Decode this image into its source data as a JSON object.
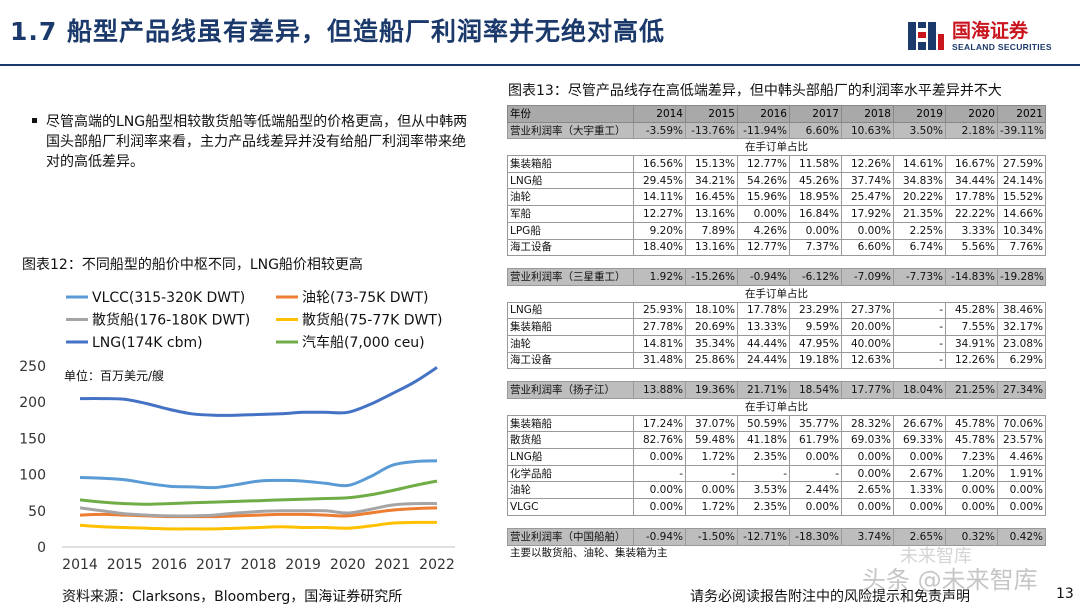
{
  "header": {
    "title": "1.7 船型产品线虽有差异，但造船厂利润率并无绝对高低",
    "logo_cn": "国海证券",
    "logo_en": "SEALAND SECURITIES"
  },
  "bullet_text": "尽管高端的LNG船型相较散货船等低端船型的价格更高，但从中韩两国头部船厂利润率来看，主力产品线差异并没有给船厂利润率带来绝对的高低差异。",
  "chart12_title": "图表12：不同船型的船价中枢不同，LNG船价相较更高",
  "chart_data": [
    {
      "type": "line",
      "title": "图表12：不同船型的船价中枢不同，LNG船价相较更高",
      "unit_label": "单位：百万美元/艘",
      "xlabel": "",
      "ylabel": "",
      "x": [
        2014,
        2015,
        2016,
        2017,
        2018,
        2019,
        2020,
        2021,
        2022
      ],
      "ylim": [
        0,
        250
      ],
      "yticks": [
        0,
        50,
        100,
        150,
        200,
        250
      ],
      "legend_placement": "top",
      "grid": false,
      "series": [
        {
          "name": "VLCC(315-320K DWT)",
          "color": "#5b9bd5",
          "x": [
            2014,
            2014.5,
            2015,
            2015.5,
            2016,
            2016.5,
            2017,
            2017.5,
            2018,
            2018.5,
            2019,
            2019.5,
            2020,
            2020.5,
            2021,
            2021.5,
            2022
          ],
          "values": [
            96,
            95,
            93,
            88,
            84,
            83,
            82,
            86,
            91,
            92,
            91,
            88,
            85,
            97,
            113,
            118,
            119
          ]
        },
        {
          "name": "油轮(73-75K DWT)",
          "color": "#ed7d31",
          "x": [
            2014,
            2014.5,
            2015,
            2015.5,
            2016,
            2016.5,
            2017,
            2017.5,
            2018,
            2018.5,
            2019,
            2019.5,
            2020,
            2020.5,
            2021,
            2021.5,
            2022
          ],
          "values": [
            44,
            45,
            44,
            43,
            42,
            42,
            42,
            43,
            44,
            45,
            45,
            44,
            43,
            47,
            51,
            53,
            54
          ]
        },
        {
          "name": "散货船(176-180K DWT)",
          "color": "#a5a5a5",
          "x": [
            2014,
            2014.5,
            2015,
            2015.5,
            2016,
            2016.5,
            2017,
            2017.5,
            2018,
            2018.5,
            2019,
            2019.5,
            2020,
            2020.5,
            2021,
            2021.5,
            2022
          ],
          "values": [
            54,
            50,
            46,
            44,
            43,
            43,
            44,
            47,
            49,
            50,
            50,
            50,
            47,
            52,
            58,
            60,
            60
          ]
        },
        {
          "name": "散货船(75-77K DWT)",
          "color": "#ffc000",
          "x": [
            2014,
            2014.5,
            2015,
            2015.5,
            2016,
            2016.5,
            2017,
            2017.5,
            2018,
            2018.5,
            2019,
            2019.5,
            2020,
            2020.5,
            2021,
            2021.5,
            2022
          ],
          "values": [
            30,
            28,
            27,
            26,
            25,
            25,
            25,
            26,
            27,
            28,
            27,
            27,
            26,
            29,
            33,
            34,
            34
          ]
        },
        {
          "name": "LNG(174K cbm)",
          "color": "#4472c4",
          "x": [
            2014,
            2014.5,
            2015,
            2015.5,
            2016,
            2016.5,
            2017,
            2017.5,
            2018,
            2018.5,
            2019,
            2019.5,
            2020,
            2020.5,
            2021,
            2021.5,
            2022
          ],
          "values": [
            205,
            205,
            204,
            198,
            190,
            184,
            182,
            182,
            183,
            184,
            186,
            186,
            186,
            197,
            212,
            228,
            248
          ]
        },
        {
          "name": "汽车船(7,000 ceu)",
          "color": "#70ad47",
          "x": [
            2014,
            2014.5,
            2015,
            2015.5,
            2016,
            2016.5,
            2017,
            2017.5,
            2018,
            2018.5,
            2019,
            2019.5,
            2020,
            2020.5,
            2021,
            2021.5,
            2022
          ],
          "values": [
            65,
            62,
            60,
            59,
            60,
            61,
            62,
            63,
            64,
            65,
            66,
            67,
            68,
            72,
            78,
            85,
            91
          ]
        }
      ]
    },
    {
      "type": "table",
      "title": "图表13：尽管产品线存在高低端差异，但中韩头部船厂的利润率水平差异并不大",
      "header": [
        "年份",
        "2014",
        "2015",
        "2016",
        "2017",
        "2018",
        "2019",
        "2020",
        "2021"
      ],
      "sections": [
        {
          "profit_label": "营业利润率（大宇重工）",
          "profit": [
            "-3.59%",
            "-13.76%",
            "-11.94%",
            "6.60%",
            "10.63%",
            "3.50%",
            "2.18%",
            "-39.11%"
          ],
          "sub_label": "在手订单占比",
          "rows": [
            {
              "label": "集装箱船",
              "values": [
                "16.56%",
                "15.13%",
                "12.77%",
                "11.58%",
                "12.26%",
                "14.61%",
                "16.67%",
                "27.59%"
              ]
            },
            {
              "label": "LNG船",
              "values": [
                "29.45%",
                "34.21%",
                "54.26%",
                "45.26%",
                "37.74%",
                "34.83%",
                "34.44%",
                "24.14%"
              ]
            },
            {
              "label": "油轮",
              "values": [
                "14.11%",
                "16.45%",
                "15.96%",
                "18.95%",
                "25.47%",
                "20.22%",
                "17.78%",
                "15.52%"
              ]
            },
            {
              "label": "军船",
              "values": [
                "12.27%",
                "13.16%",
                "0.00%",
                "16.84%",
                "17.92%",
                "21.35%",
                "22.22%",
                "14.66%"
              ]
            },
            {
              "label": "LPG船",
              "values": [
                "9.20%",
                "7.89%",
                "4.26%",
                "0.00%",
                "0.00%",
                "2.25%",
                "3.33%",
                "10.34%"
              ]
            },
            {
              "label": "海工设备",
              "values": [
                "18.40%",
                "13.16%",
                "12.77%",
                "7.37%",
                "6.60%",
                "6.74%",
                "5.56%",
                "7.76%"
              ]
            }
          ]
        },
        {
          "profit_label": "营业利润率（三星重工）",
          "profit": [
            "1.92%",
            "-15.26%",
            "-0.94%",
            "-6.12%",
            "-7.09%",
            "-7.73%",
            "-14.83%",
            "-19.28%"
          ],
          "sub_label": "在手订单占比",
          "rows": [
            {
              "label": "LNG船",
              "values": [
                "25.93%",
                "18.10%",
                "17.78%",
                "23.29%",
                "27.37%",
                "-",
                "45.28%",
                "38.46%"
              ]
            },
            {
              "label": "集装箱船",
              "values": [
                "27.78%",
                "20.69%",
                "13.33%",
                "9.59%",
                "20.00%",
                "-",
                "7.55%",
                "32.17%"
              ]
            },
            {
              "label": "油轮",
              "values": [
                "14.81%",
                "35.34%",
                "44.44%",
                "47.95%",
                "40.00%",
                "-",
                "34.91%",
                "23.08%"
              ]
            },
            {
              "label": "海工设备",
              "values": [
                "31.48%",
                "25.86%",
                "24.44%",
                "19.18%",
                "12.63%",
                "-",
                "12.26%",
                "6.29%"
              ]
            }
          ]
        },
        {
          "profit_label": "营业利润率（扬子江）",
          "profit": [
            "13.88%",
            "19.36%",
            "21.71%",
            "18.54%",
            "17.77%",
            "18.04%",
            "21.25%",
            "27.34%"
          ],
          "sub_label": "在手订单占比",
          "rows": [
            {
              "label": "集装箱船",
              "values": [
                "17.24%",
                "37.07%",
                "50.59%",
                "35.77%",
                "28.32%",
                "26.67%",
                "45.78%",
                "70.06%"
              ]
            },
            {
              "label": "散货船",
              "values": [
                "82.76%",
                "59.48%",
                "41.18%",
                "61.79%",
                "69.03%",
                "69.33%",
                "45.78%",
                "23.57%"
              ]
            },
            {
              "label": "LNG船",
              "values": [
                "0.00%",
                "1.72%",
                "2.35%",
                "0.00%",
                "0.00%",
                "0.00%",
                "7.23%",
                "4.46%"
              ]
            },
            {
              "label": "化学品船",
              "values": [
                "-",
                "-",
                "-",
                "-",
                "0.00%",
                "2.67%",
                "1.20%",
                "1.91%"
              ]
            },
            {
              "label": "油轮",
              "values": [
                "0.00%",
                "0.00%",
                "3.53%",
                "2.44%",
                "2.65%",
                "1.33%",
                "0.00%",
                "0.00%"
              ]
            },
            {
              "label": "VLGC",
              "values": [
                "0.00%",
                "1.72%",
                "2.35%",
                "0.00%",
                "0.00%",
                "0.00%",
                "0.00%",
                "0.00%"
              ]
            }
          ]
        },
        {
          "profit_label": "营业利润率（中国船舶）",
          "profit": [
            "-0.94%",
            "-1.50%",
            "-12.71%",
            "-18.30%",
            "3.74%",
            "2.65%",
            "0.32%",
            "0.42%"
          ],
          "note": "主要以散货船、油轮、集装箱为主"
        }
      ]
    }
  ],
  "footer": {
    "source": "资料来源：Clarksons，Bloomberg，国海证券研究所",
    "disclaimer": "请务必阅读报告附注中的风险提示和免责声明",
    "page": "13",
    "watermark": "头条 @未来智库",
    "watermark_top": "未来智库"
  }
}
